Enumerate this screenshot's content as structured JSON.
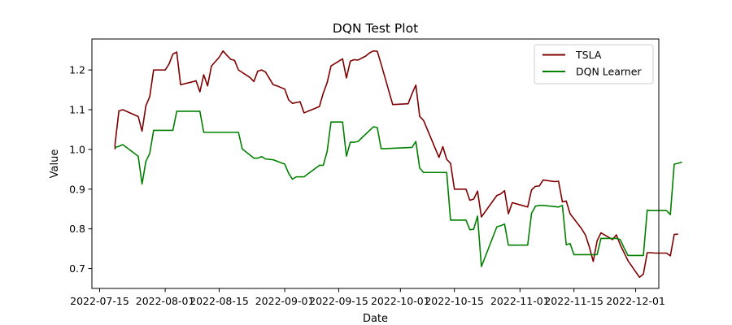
{
  "chart_data": {
    "type": "line",
    "title": "DQN Test Plot",
    "xlabel": "Date",
    "ylabel": "Value",
    "xlim": [
      "2022-07-13",
      "2022-12-07"
    ],
    "ylim": [
      0.65,
      1.278
    ],
    "x_ticks": [
      "2022-07-15",
      "2022-08-01",
      "2022-08-15",
      "2022-09-01",
      "2022-09-15",
      "2022-10-01",
      "2022-10-15",
      "2022-11-01",
      "2022-11-15",
      "2022-12-01"
    ],
    "y_ticks": [
      0.7,
      0.8,
      0.9,
      1.0,
      1.1,
      1.2
    ],
    "legend_position": "top-right",
    "grid": false,
    "series": [
      {
        "name": "TSLA",
        "color": "#800000",
        "points": [
          [
            "2022-07-19",
            1.0
          ],
          [
            "2022-07-19",
            1.013
          ],
          [
            "2022-07-20",
            1.097
          ],
          [
            "2022-07-21",
            1.1
          ],
          [
            "2022-07-25",
            1.083
          ],
          [
            "2022-07-26",
            1.046
          ],
          [
            "2022-07-27",
            1.11
          ],
          [
            "2022-07-28",
            1.133
          ],
          [
            "2022-07-29",
            1.2
          ],
          [
            "2022-08-01",
            1.2
          ],
          [
            "2022-08-02",
            1.215
          ],
          [
            "2022-08-03",
            1.24
          ],
          [
            "2022-08-04",
            1.245
          ],
          [
            "2022-08-05",
            1.163
          ],
          [
            "2022-08-08",
            1.17
          ],
          [
            "2022-08-09",
            1.173
          ],
          [
            "2022-08-10",
            1.145
          ],
          [
            "2022-08-11",
            1.188
          ],
          [
            "2022-08-12",
            1.16
          ],
          [
            "2022-08-13",
            1.21
          ],
          [
            "2022-08-15",
            1.232
          ],
          [
            "2022-08-16",
            1.248
          ],
          [
            "2022-08-17",
            1.237
          ],
          [
            "2022-08-18",
            1.227
          ],
          [
            "2022-08-19",
            1.224
          ],
          [
            "2022-08-20",
            1.2
          ],
          [
            "2022-08-23",
            1.181
          ],
          [
            "2022-08-24",
            1.171
          ],
          [
            "2022-08-25",
            1.197
          ],
          [
            "2022-08-26",
            1.2
          ],
          [
            "2022-08-27",
            1.195
          ],
          [
            "2022-08-29",
            1.163
          ],
          [
            "2022-08-30",
            1.16
          ],
          [
            "2022-09-01",
            1.152
          ],
          [
            "2022-09-02",
            1.125
          ],
          [
            "2022-09-03",
            1.116
          ],
          [
            "2022-09-05",
            1.12
          ],
          [
            "2022-09-06",
            1.092
          ],
          [
            "2022-09-10",
            1.108
          ],
          [
            "2022-09-11",
            1.142
          ],
          [
            "2022-09-12",
            1.168
          ],
          [
            "2022-09-13",
            1.21
          ],
          [
            "2022-09-16",
            1.228
          ],
          [
            "2022-09-17",
            1.18
          ],
          [
            "2022-09-18",
            1.222
          ],
          [
            "2022-09-19",
            1.226
          ],
          [
            "2022-09-20",
            1.225
          ],
          [
            "2022-09-22",
            1.235
          ],
          [
            "2022-09-23",
            1.243
          ],
          [
            "2022-09-24",
            1.248
          ],
          [
            "2022-09-25",
            1.247
          ],
          [
            "2022-09-26",
            1.215
          ],
          [
            "2022-09-29",
            1.113
          ],
          [
            "2022-10-03",
            1.115
          ],
          [
            "2022-10-04",
            1.14
          ],
          [
            "2022-10-05",
            1.162
          ],
          [
            "2022-10-06",
            1.083
          ],
          [
            "2022-10-07",
            1.073
          ],
          [
            "2022-10-11",
            0.98
          ],
          [
            "2022-10-12",
            1.007
          ],
          [
            "2022-10-13",
            0.975
          ],
          [
            "2022-10-14",
            0.965
          ],
          [
            "2022-10-15",
            0.9
          ],
          [
            "2022-10-18",
            0.9
          ],
          [
            "2022-10-19",
            0.872
          ],
          [
            "2022-10-20",
            0.875
          ],
          [
            "2022-10-21",
            0.895
          ],
          [
            "2022-10-22",
            0.83
          ],
          [
            "2022-10-26",
            0.884
          ],
          [
            "2022-10-27",
            0.888
          ],
          [
            "2022-10-28",
            0.896
          ],
          [
            "2022-10-29",
            0.838
          ],
          [
            "2022-10-30",
            0.866
          ],
          [
            "2022-11-03",
            0.855
          ],
          [
            "2022-11-04",
            0.898
          ],
          [
            "2022-11-05",
            0.907
          ],
          [
            "2022-11-06",
            0.908
          ],
          [
            "2022-11-07",
            0.923
          ],
          [
            "2022-11-10",
            0.919
          ],
          [
            "2022-11-11",
            0.92
          ],
          [
            "2022-11-12",
            0.868
          ],
          [
            "2022-11-13",
            0.87
          ],
          [
            "2022-11-14",
            0.838
          ],
          [
            "2022-11-17",
            0.8
          ],
          [
            "2022-11-18",
            0.784
          ],
          [
            "2022-11-19",
            0.754
          ],
          [
            "2022-11-20",
            0.718
          ],
          [
            "2022-11-21",
            0.77
          ],
          [
            "2022-11-22",
            0.79
          ],
          [
            "2022-11-25",
            0.773
          ],
          [
            "2022-11-26",
            0.785
          ],
          [
            "2022-11-27",
            0.76
          ],
          [
            "2022-11-29",
            0.72
          ],
          [
            "2022-12-02",
            0.678
          ],
          [
            "2022-12-03",
            0.686
          ],
          [
            "2022-12-04",
            0.74
          ],
          [
            "2022-12-05",
            0.74
          ],
          [
            "2022-12-06",
            0.739
          ],
          [
            "2022-12-09",
            0.739
          ],
          [
            "2022-12-10",
            0.732
          ],
          [
            "2022-12-11",
            0.786
          ],
          [
            "2022-12-12",
            0.787
          ]
        ]
      },
      {
        "name": "DQN Learner",
        "color": "#008000",
        "points": [
          [
            "2022-07-19",
            1.005
          ],
          [
            "2022-07-20",
            1.008
          ],
          [
            "2022-07-21",
            1.012
          ],
          [
            "2022-07-25",
            0.983
          ],
          [
            "2022-07-26",
            0.913
          ],
          [
            "2022-07-27",
            0.97
          ],
          [
            "2022-07-28",
            0.99
          ],
          [
            "2022-07-29",
            1.048
          ],
          [
            "2022-08-01",
            1.048
          ],
          [
            "2022-08-03",
            1.048
          ],
          [
            "2022-08-04",
            1.096
          ],
          [
            "2022-08-08",
            1.096
          ],
          [
            "2022-08-10",
            1.096
          ],
          [
            "2022-08-11",
            1.043
          ],
          [
            "2022-08-15",
            1.043
          ],
          [
            "2022-08-20",
            1.043
          ],
          [
            "2022-08-21",
            1.001
          ],
          [
            "2022-08-24",
            0.978
          ],
          [
            "2022-08-25",
            0.978
          ],
          [
            "2022-08-26",
            0.982
          ],
          [
            "2022-08-27",
            0.976
          ],
          [
            "2022-08-29",
            0.974
          ],
          [
            "2022-09-01",
            0.963
          ],
          [
            "2022-09-02",
            0.94
          ],
          [
            "2022-09-03",
            0.925
          ],
          [
            "2022-09-04",
            0.931
          ],
          [
            "2022-09-06",
            0.931
          ],
          [
            "2022-09-10",
            0.96
          ],
          [
            "2022-09-11",
            0.96
          ],
          [
            "2022-09-12",
            0.995
          ],
          [
            "2022-09-13",
            1.069
          ],
          [
            "2022-09-16",
            1.069
          ],
          [
            "2022-09-17",
            0.983
          ],
          [
            "2022-09-18",
            1.018
          ],
          [
            "2022-09-19",
            1.018
          ],
          [
            "2022-09-20",
            1.02
          ],
          [
            "2022-09-24",
            1.057
          ],
          [
            "2022-09-25",
            1.055
          ],
          [
            "2022-09-26",
            1.002
          ],
          [
            "2022-09-27",
            1.002
          ],
          [
            "2022-10-04",
            1.005
          ],
          [
            "2022-10-05",
            1.02
          ],
          [
            "2022-10-06",
            0.953
          ],
          [
            "2022-10-07",
            0.942
          ],
          [
            "2022-10-12",
            0.942
          ],
          [
            "2022-10-13",
            0.942
          ],
          [
            "2022-10-14",
            0.822
          ],
          [
            "2022-10-18",
            0.822
          ],
          [
            "2022-10-19",
            0.798
          ],
          [
            "2022-10-20",
            0.799
          ],
          [
            "2022-10-21",
            0.832
          ],
          [
            "2022-10-22",
            0.705
          ],
          [
            "2022-10-26",
            0.805
          ],
          [
            "2022-10-27",
            0.808
          ],
          [
            "2022-10-28",
            0.812
          ],
          [
            "2022-10-29",
            0.759
          ],
          [
            "2022-11-03",
            0.759
          ],
          [
            "2022-11-04",
            0.839
          ],
          [
            "2022-11-05",
            0.857
          ],
          [
            "2022-11-06",
            0.859
          ],
          [
            "2022-11-07",
            0.859
          ],
          [
            "2022-11-11",
            0.855
          ],
          [
            "2022-11-12",
            0.859
          ],
          [
            "2022-11-13",
            0.76
          ],
          [
            "2022-11-14",
            0.763
          ],
          [
            "2022-11-15",
            0.735
          ],
          [
            "2022-11-18",
            0.735
          ],
          [
            "2022-11-21",
            0.735
          ],
          [
            "2022-11-22",
            0.776
          ],
          [
            "2022-11-26",
            0.776
          ],
          [
            "2022-11-27",
            0.773
          ],
          [
            "2022-11-28",
            0.752
          ],
          [
            "2022-11-29",
            0.733
          ],
          [
            "2022-12-02",
            0.733
          ],
          [
            "2022-12-03",
            0.733
          ],
          [
            "2022-12-04",
            0.847
          ],
          [
            "2022-12-05",
            0.846
          ],
          [
            "2022-12-09",
            0.846
          ],
          [
            "2022-12-10",
            0.836
          ],
          [
            "2022-12-11",
            0.963
          ],
          [
            "2022-12-12",
            0.965
          ],
          [
            "2022-12-13",
            0.968
          ]
        ]
      }
    ]
  }
}
